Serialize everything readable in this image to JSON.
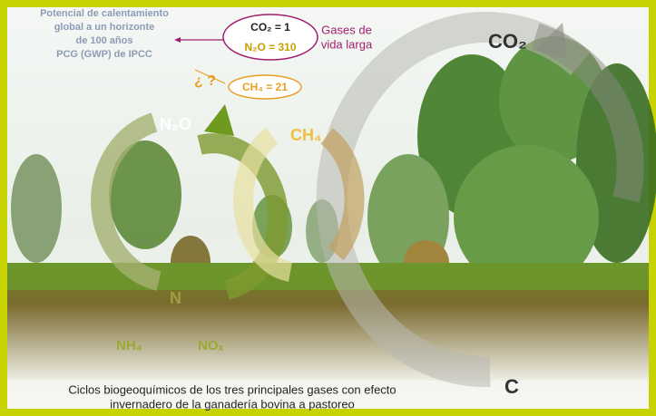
{
  "gwp_text": [
    "Potencial de calentamiento",
    "global a un horizonte",
    "de 100 años",
    "PCG  (GWP) de IPCC"
  ],
  "gases": {
    "co2": "CO₂ =  1",
    "n2o": "N₂O = 310",
    "ch4": "CH₄ = 21"
  },
  "long_lived": [
    "Gases de",
    "vida larga"
  ],
  "question": "¿ ?",
  "labels": {
    "n2o": "N₂O",
    "ch4": "CH₄",
    "co2": "CO₂",
    "n": "N",
    "nh4": "NH₄",
    "nox": "NOₓ",
    "c": "C"
  },
  "caption": [
    "Ciclos biogeoquímicos de los tres principales gases con efecto",
    "invernadero de la ganadería bovina a pastoreo"
  ]
}
